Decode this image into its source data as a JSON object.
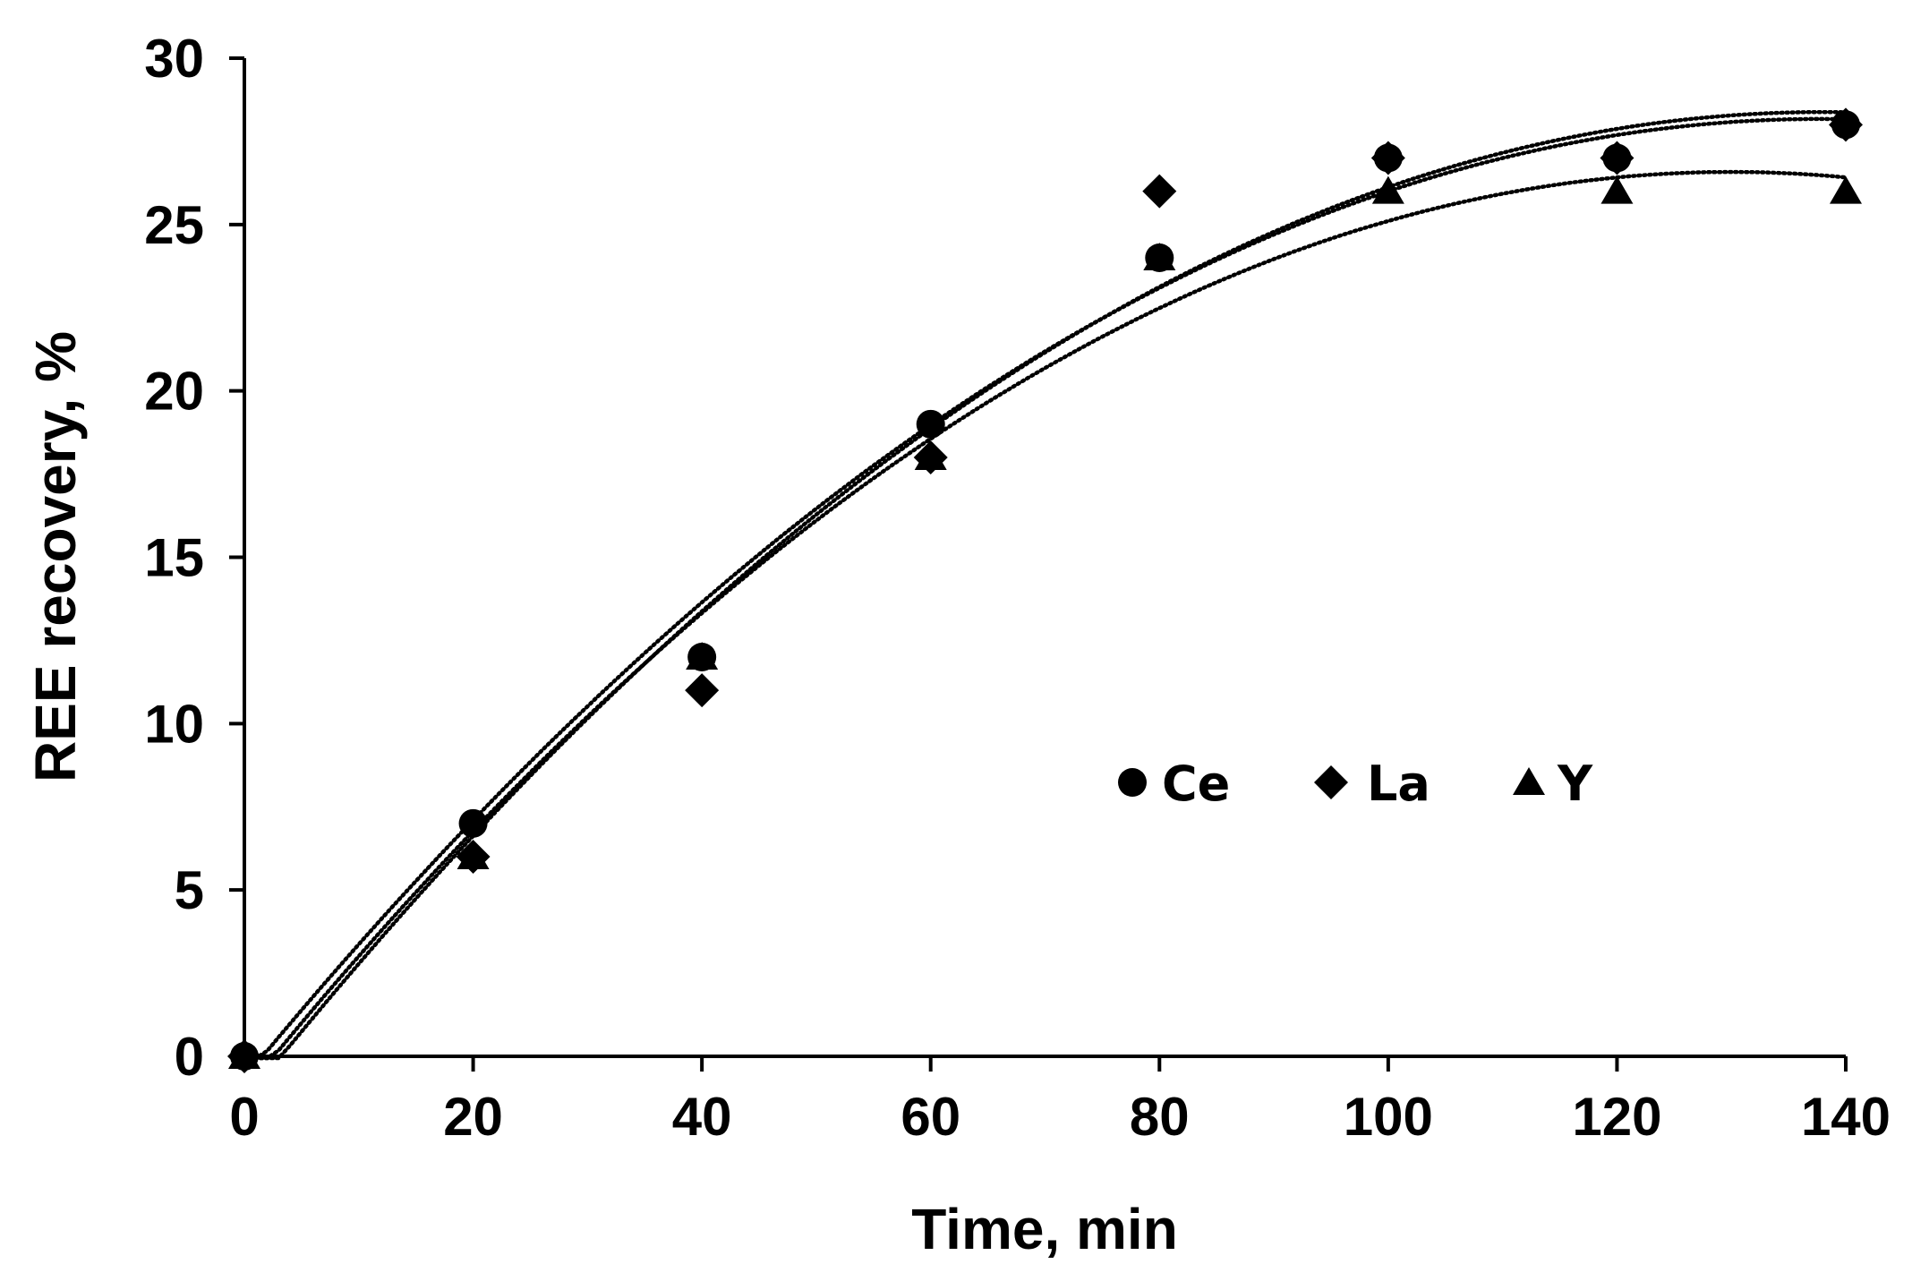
{
  "chart_data": {
    "type": "scatter",
    "title": "",
    "xlabel": "Time, min",
    "ylabel": "REE recovery, %",
    "xlim": [
      0,
      140
    ],
    "ylim": [
      0,
      30
    ],
    "xticks": [
      0,
      20,
      40,
      60,
      80,
      100,
      120,
      140
    ],
    "yticks": [
      0,
      5,
      10,
      15,
      20,
      25,
      30
    ],
    "grid": false,
    "legend_position": "center-right",
    "trendline": "polynomial (order 2), dotted",
    "x": [
      0,
      20,
      40,
      60,
      80,
      100,
      120,
      140
    ],
    "series": [
      {
        "name": "Ce",
        "marker": "circle",
        "values": [
          0,
          7,
          12,
          19,
          24,
          27,
          27,
          28
        ]
      },
      {
        "name": "La",
        "marker": "diamond",
        "values": [
          0,
          6,
          11,
          18,
          26,
          27,
          27,
          28
        ]
      },
      {
        "name": "Y",
        "marker": "triangle",
        "values": [
          0,
          6,
          12,
          18,
          24,
          26,
          26,
          26
        ]
      }
    ],
    "colors": {
      "marker": "#000000",
      "axis": "#000000",
      "trendline": "#000000",
      "background": "#ffffff"
    }
  }
}
